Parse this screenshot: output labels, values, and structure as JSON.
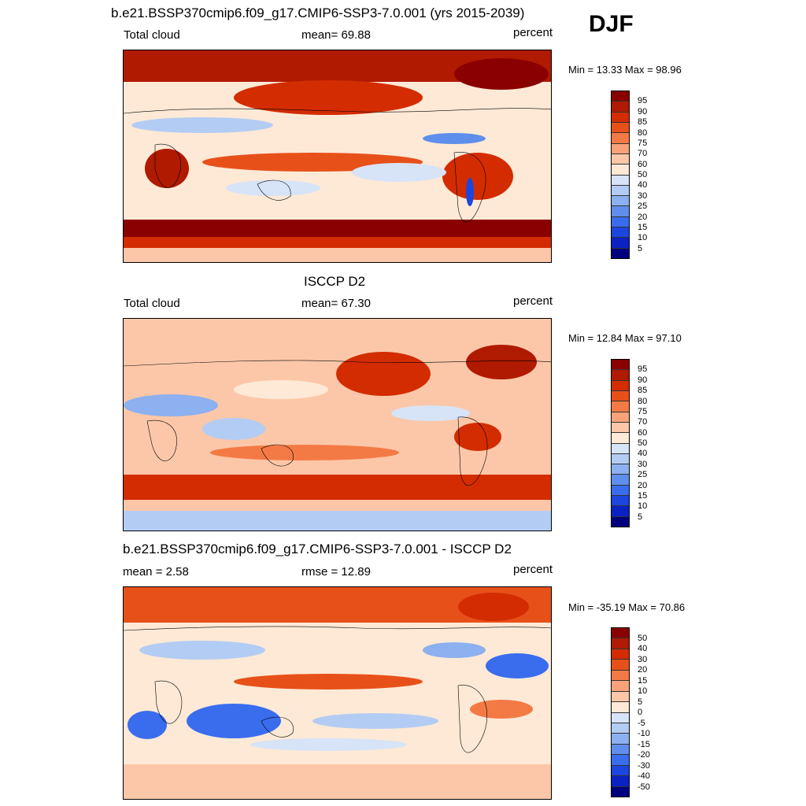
{
  "season": "DJF",
  "panels": [
    {
      "title": "b.e21.BSSP370cmip6.f09_g17.CMIP6-SSP3-7.0.001 (yrs 2015-2039)",
      "left_label": "Total cloud",
      "center_label": "mean=  69.88",
      "units": "percent",
      "minmax": "Min =  13.33 Max =  98.96",
      "colorbar": {
        "levels": [
          "95",
          "90",
          "85",
          "80",
          "75",
          "70",
          "60",
          "50",
          "40",
          "30",
          "25",
          "20",
          "15",
          "10",
          "5"
        ],
        "colors": [
          "#8a0000",
          "#b01a00",
          "#d32c00",
          "#e8501a",
          "#f47a45",
          "#f9a27a",
          "#fcc7a8",
          "#fde9d6",
          "#d7e3f7",
          "#b3ccf4",
          "#8cb0f0",
          "#5f8eec",
          "#3a6cee",
          "#1c46e0",
          "#0a22c4",
          "#00007e"
        ]
      }
    },
    {
      "title": "ISCCP D2",
      "left_label": "Total cloud",
      "center_label": "mean=  67.30",
      "units": "percent",
      "minmax": "Min =  12.84 Max =  97.10",
      "colorbar": {
        "levels": [
          "95",
          "90",
          "85",
          "80",
          "75",
          "70",
          "60",
          "50",
          "40",
          "30",
          "25",
          "20",
          "15",
          "10",
          "5"
        ],
        "colors": [
          "#8a0000",
          "#b01a00",
          "#d32c00",
          "#e8501a",
          "#f47a45",
          "#f9a27a",
          "#fcc7a8",
          "#fde9d6",
          "#d7e3f7",
          "#b3ccf4",
          "#8cb0f0",
          "#5f8eec",
          "#3a6cee",
          "#1c46e0",
          "#0a22c4",
          "#00007e"
        ]
      }
    },
    {
      "title": "b.e21.BSSP370cmip6.f09_g17.CMIP6-SSP3-7.0.001 - ISCCP D2",
      "left_label": "mean =   2.58",
      "center_label": "rmse =  12.89",
      "units": "percent",
      "minmax": "Min = -35.19 Max =  70.86",
      "colorbar": {
        "levels": [
          "50",
          "40",
          "30",
          "20",
          "15",
          "10",
          "5",
          "0",
          "-5",
          "-10",
          "-15",
          "-20",
          "-30",
          "-40",
          "-50"
        ],
        "colors": [
          "#8a0000",
          "#b01a00",
          "#d32c00",
          "#e8501a",
          "#f47a45",
          "#f9a27a",
          "#fcc7a8",
          "#fde9d6",
          "#d7e3f7",
          "#b3ccf4",
          "#8cb0f0",
          "#5f8eec",
          "#3a6cee",
          "#1c46e0",
          "#0a22c4",
          "#00007e"
        ]
      }
    }
  ]
}
